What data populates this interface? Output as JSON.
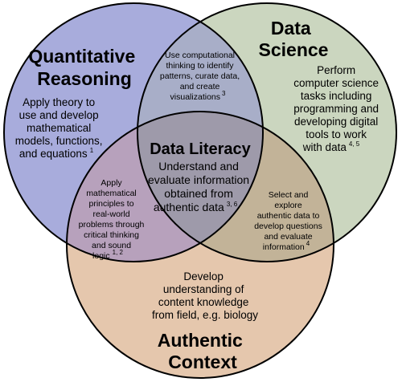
{
  "colors": {
    "quantitative_reasoning": "#a8acdc",
    "data_science": "#cbd6bf",
    "authentic_context": "#e5c7ad",
    "qr_ds_overlap": "#a8aec8",
    "qr_ac_overlap": "#b7a1bc",
    "ds_ac_overlap": "#c2b398",
    "center_overlap": "#9e9aaa",
    "outline": "#000000",
    "background": "#ffffff"
  },
  "regions": {
    "quantitative_reasoning": {
      "title": [
        "Quantitative",
        "Reasoning"
      ],
      "description": [
        "Apply theory to",
        "use and develop",
        "mathematical",
        "models, functions,",
        "and equations"
      ],
      "citation": "1"
    },
    "data_science": {
      "title": [
        "Data",
        "Science"
      ],
      "description": [
        "Perform",
        "computer science",
        "tasks including",
        "programming and",
        "developing digital",
        "tools to work",
        "with data"
      ],
      "citation": "4, 5"
    },
    "authentic_context": {
      "title": [
        "Authentic",
        "Context"
      ],
      "description": [
        "Develop",
        "understanding of",
        "content knowledge",
        "from field, e.g. biology"
      ]
    },
    "qr_ds": {
      "description": [
        "Use computational",
        "thinking to identify",
        "patterns, curate data,",
        "and create",
        "visualizations"
      ],
      "citation": "3"
    },
    "qr_ac": {
      "description": [
        "Apply",
        "mathematical",
        "principles to",
        "real-world",
        "problems through",
        "critical thinking",
        "and sound",
        "logic"
      ],
      "citation": "1, 2"
    },
    "ds_ac": {
      "description": [
        "Select and",
        "explore",
        "authentic data to",
        "develop questions",
        "and evaluate",
        "information"
      ],
      "citation": "4"
    },
    "data_literacy": {
      "title": "Data Literacy",
      "description": [
        "Understand and",
        "evaluate information",
        "obtained from",
        "authentic data"
      ],
      "citation": "3, 6"
    }
  }
}
